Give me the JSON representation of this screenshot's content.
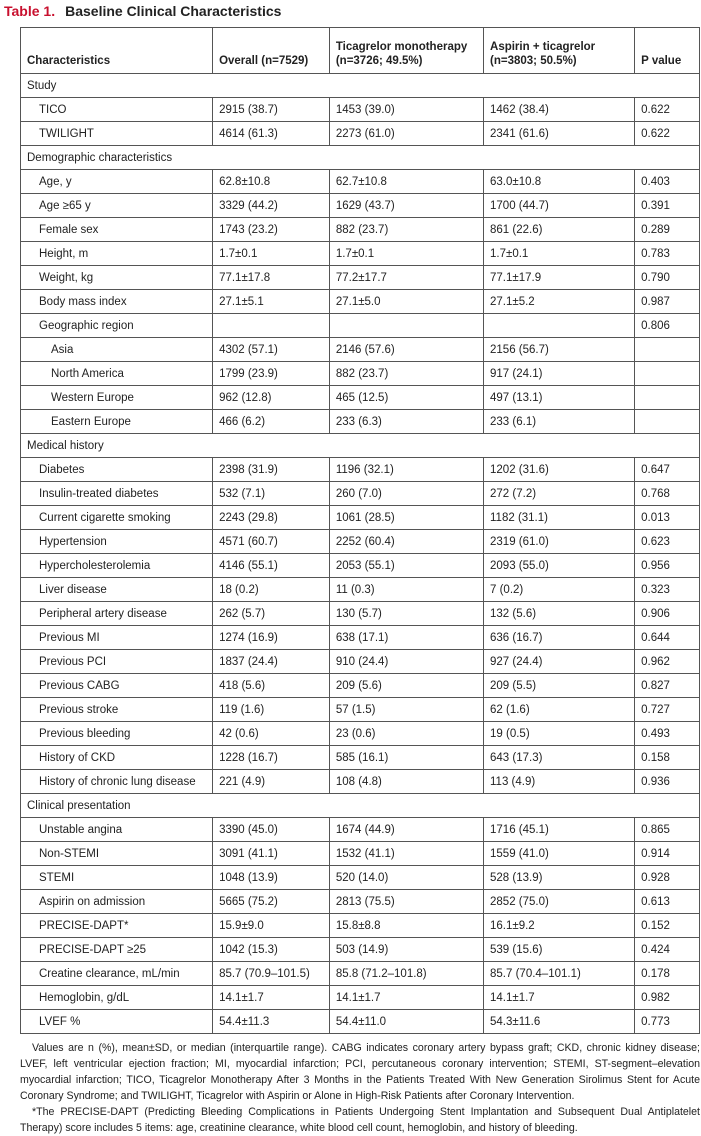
{
  "title": {
    "label": "Table 1.",
    "text": "Baseline Clinical Characteristics"
  },
  "table": {
    "header": [
      "Characteristics",
      "Overall (n=7529)",
      "Ticagrelor monotherapy (n=3726; 49.5%)",
      "Aspirin + ticagrelor (n=3803; 50.5%)",
      "P value"
    ],
    "sections": [
      {
        "title": "Study",
        "rows": [
          {
            "label": "TICO",
            "cells": [
              "2915 (38.7)",
              "1453 (39.0)",
              "1462 (38.4)",
              "0.622"
            ]
          },
          {
            "label": "TWILIGHT",
            "cells": [
              "4614 (61.3)",
              "2273 (61.0)",
              "2341 (61.6)",
              "0.622"
            ]
          }
        ]
      },
      {
        "title": "Demographic characteristics",
        "rows": [
          {
            "label": "Age, y",
            "cells": [
              "62.8±10.8",
              "62.7±10.8",
              "63.0±10.8",
              "0.403"
            ]
          },
          {
            "label": "Age ≥65 y",
            "cells": [
              "3329 (44.2)",
              "1629 (43.7)",
              "1700 (44.7)",
              "0.391"
            ]
          },
          {
            "label": "Female sex",
            "cells": [
              "1743 (23.2)",
              "882 (23.7)",
              "861 (22.6)",
              "0.289"
            ]
          },
          {
            "label": "Height, m",
            "cells": [
              "1.7±0.1",
              "1.7±0.1",
              "1.7±0.1",
              "0.783"
            ]
          },
          {
            "label": "Weight, kg",
            "cells": [
              "77.1±17.8",
              "77.2±17.7",
              "77.1±17.9",
              "0.790"
            ]
          },
          {
            "label": "Body mass index",
            "cells": [
              "27.1±5.1",
              "27.1±5.0",
              "27.1±5.2",
              "0.987"
            ]
          },
          {
            "label": "Geographic region",
            "cells": [
              null,
              null,
              null,
              "0.806"
            ],
            "subrows": [
              {
                "label": "Asia",
                "cells": [
                  "4302 (57.1)",
                  "2146 (57.6)",
                  "2156 (56.7)",
                  null
                ]
              },
              {
                "label": "North America",
                "cells": [
                  "1799 (23.9)",
                  "882 (23.7)",
                  "917 (24.1)",
                  null
                ]
              },
              {
                "label": "Western Europe",
                "cells": [
                  "962 (12.8)",
                  "465 (12.5)",
                  "497 (13.1)",
                  null
                ]
              },
              {
                "label": "Eastern Europe",
                "cells": [
                  "466 (6.2)",
                  "233 (6.3)",
                  "233 (6.1)",
                  null
                ]
              }
            ]
          }
        ]
      },
      {
        "title": "Medical history",
        "rows": [
          {
            "label": "Diabetes",
            "cells": [
              "2398 (31.9)",
              "1196 (32.1)",
              "1202 (31.6)",
              "0.647"
            ]
          },
          {
            "label": "Insulin-treated diabetes",
            "cells": [
              "532 (7.1)",
              "260 (7.0)",
              "272 (7.2)",
              "0.768"
            ]
          },
          {
            "label": "Current cigarette smoking",
            "cells": [
              "2243 (29.8)",
              "1061 (28.5)",
              "1182 (31.1)",
              "0.013"
            ]
          },
          {
            "label": "Hypertension",
            "cells": [
              "4571 (60.7)",
              "2252 (60.4)",
              "2319 (61.0)",
              "0.623"
            ]
          },
          {
            "label": "Hypercholesterolemia",
            "cells": [
              "4146 (55.1)",
              "2053 (55.1)",
              "2093 (55.0)",
              "0.956"
            ]
          },
          {
            "label": "Liver disease",
            "cells": [
              "18 (0.2)",
              "11 (0.3)",
              "7 (0.2)",
              "0.323"
            ]
          },
          {
            "label": "Peripheral artery disease",
            "cells": [
              "262 (5.7)",
              "130 (5.7)",
              "132 (5.6)",
              "0.906"
            ]
          },
          {
            "label": "Previous MI",
            "cells": [
              "1274 (16.9)",
              "638 (17.1)",
              "636 (16.7)",
              "0.644"
            ]
          },
          {
            "label": "Previous PCI",
            "cells": [
              "1837 (24.4)",
              "910 (24.4)",
              "927 (24.4)",
              "0.962"
            ]
          },
          {
            "label": "Previous CABG",
            "cells": [
              "418 (5.6)",
              "209 (5.6)",
              "209 (5.5)",
              "0.827"
            ]
          },
          {
            "label": "Previous stroke",
            "cells": [
              "119 (1.6)",
              "57 (1.5)",
              "62 (1.6)",
              "0.727"
            ]
          },
          {
            "label": "Previous bleeding",
            "cells": [
              "42 (0.6)",
              "23 (0.6)",
              "19 (0.5)",
              "0.493"
            ]
          },
          {
            "label": "History of CKD",
            "cells": [
              "1228 (16.7)",
              "585 (16.1)",
              "643 (17.3)",
              "0.158"
            ]
          },
          {
            "label": "History of chronic lung disease",
            "cells": [
              "221 (4.9)",
              "108 (4.8)",
              "113 (4.9)",
              "0.936"
            ]
          }
        ]
      },
      {
        "title": "Clinical presentation",
        "rows": [
          {
            "label": "Unstable angina",
            "cells": [
              "3390 (45.0)",
              "1674 (44.9)",
              "1716 (45.1)",
              "0.865"
            ]
          },
          {
            "label": "Non-STEMI",
            "cells": [
              "3091 (41.1)",
              "1532 (41.1)",
              "1559 (41.0)",
              "0.914"
            ]
          },
          {
            "label": "STEMI",
            "cells": [
              "1048 (13.9)",
              "520 (14.0)",
              "528 (13.9)",
              "0.928"
            ]
          },
          {
            "label": "Aspirin on admission",
            "cells": [
              "5665 (75.2)",
              "2813 (75.5)",
              "2852 (75.0)",
              "0.613"
            ]
          },
          {
            "label": "PRECISE-DAPT*",
            "cells": [
              "15.9±9.0",
              "15.8±8.8",
              "16.1±9.2",
              "0.152"
            ]
          },
          {
            "label": "PRECISE-DAPT ≥25",
            "cells": [
              "1042 (15.3)",
              "503 (14.9)",
              "539 (15.6)",
              "0.424"
            ]
          },
          {
            "label": "Creatine clearance, mL/min",
            "cells": [
              "85.7 (70.9–101.5)",
              "85.8 (71.2–101.8)",
              "85.7 (70.4–101.1)",
              "0.178"
            ]
          },
          {
            "label": "Hemoglobin, g/dL",
            "cells": [
              "14.1±1.7",
              "14.1±1.7",
              "14.1±1.7",
              "0.982"
            ]
          },
          {
            "label": "LVEF %",
            "cells": [
              "54.4±11.3",
              "54.4±11.0",
              "54.3±11.6",
              "0.773"
            ]
          }
        ]
      }
    ]
  },
  "footnotes": [
    "Values are n (%), mean±SD, or median (interquartile range). CABG indicates coronary artery bypass graft; CKD, chronic kidney disease; LVEF, left ventricular ejection fraction; MI, myocardial infarction; PCI, percutaneous coronary intervention; STEMI, ST-segment–elevation myocardial infarction; TICO, Ticagrelor Monotherapy After 3 Months in the Patients Treated With New Generation Sirolimus Stent for Acute Coronary Syndrome; and TWILIGHT, Ticagrelor with Aspirin or Alone in High-Risk Patients after Coronary Intervention.",
    "*The PRECISE-DAPT (Predicting Bleeding Complications in Patients Undergoing Stent Implantation and Subsequent Dual Antiplatelet Therapy) score includes 5 items: age, creatinine clearance, white blood cell count, hemoglobin, and history of bleeding."
  ]
}
